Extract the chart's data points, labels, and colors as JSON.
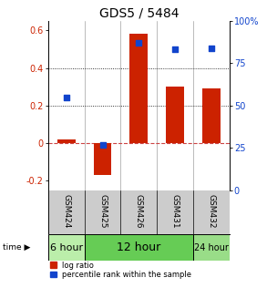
{
  "title": "GDS5 / 5484",
  "samples": [
    "GSM424",
    "GSM425",
    "GSM426",
    "GSM431",
    "GSM432"
  ],
  "log_ratio": [
    0.02,
    -0.17,
    0.58,
    0.3,
    0.29
  ],
  "percentile_rank": [
    55,
    27,
    87,
    83,
    84
  ],
  "bar_color": "#cc2200",
  "dot_color": "#1144cc",
  "ylim_left": [
    -0.25,
    0.65
  ],
  "ylim_right": [
    0,
    100
  ],
  "yticks_left": [
    -0.2,
    0.0,
    0.2,
    0.4,
    0.6
  ],
  "yticks_right": [
    0,
    25,
    50,
    75,
    100
  ],
  "ytick_labels_left": [
    "-0.2",
    "0",
    "0.2",
    "0.4",
    "0.6"
  ],
  "ytick_labels_right": [
    "0",
    "25",
    "50",
    "75",
    "100%"
  ],
  "hlines_dotted": [
    0.2,
    0.4
  ],
  "hline_zero_dashed": 0.0,
  "time_groups": [
    {
      "label": "6 hour",
      "start": 0,
      "end": 0,
      "color": "#bbeeaa",
      "fontsize": 8
    },
    {
      "label": "12 hour",
      "start": 1,
      "end": 3,
      "color": "#66cc55",
      "fontsize": 9
    },
    {
      "label": "24 hour",
      "start": 4,
      "end": 4,
      "color": "#99dd88",
      "fontsize": 7
    }
  ],
  "bar_width": 0.5,
  "dot_size": 22,
  "legend_log_ratio": "log ratio",
  "legend_percentile": "percentile rank within the sample",
  "title_fontsize": 10,
  "tick_fontsize": 7,
  "label_fontsize": 6.5,
  "time_fontsize": 7
}
